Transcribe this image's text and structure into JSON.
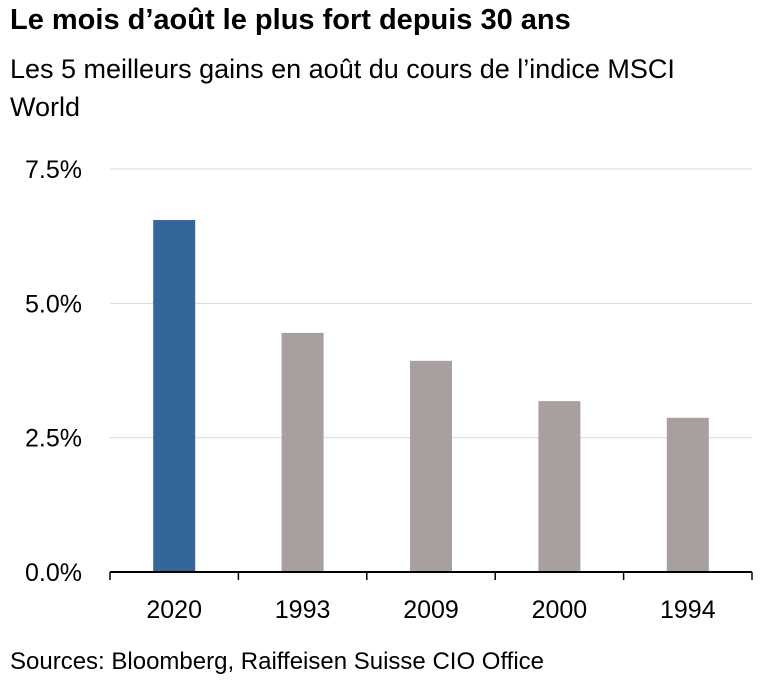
{
  "header": {
    "title": "Le mois d’août le plus fort depuis 30 ans",
    "subtitle": "Les 5 meilleurs gains en août du cours de l’indice MSCI World"
  },
  "footer": {
    "source": "Sources: Bloomberg, Raiffeisen Suisse CIO Office"
  },
  "chart_data": {
    "type": "bar",
    "title": "Le mois d’août le plus fort depuis 30 ans",
    "subtitle": "Les 5 meilleurs gains en août du cours de l’indice MSCI World",
    "categories": [
      "2020",
      "1993",
      "2009",
      "2000",
      "1994"
    ],
    "values": [
      6.55,
      4.45,
      3.93,
      3.18,
      2.87
    ],
    "unit": "%",
    "ylim": [
      0,
      7.5
    ],
    "yticks": [
      "0.0%",
      "2.5%",
      "5.0%",
      "7.5%"
    ],
    "ytick_values": [
      0,
      2.5,
      5.0,
      7.5
    ],
    "grid": true,
    "colors": {
      "highlight": "#336699",
      "default": "#a8a09e",
      "grid": "#d9d9d9",
      "axis": "#000000"
    },
    "xlabel": "",
    "ylabel": ""
  }
}
